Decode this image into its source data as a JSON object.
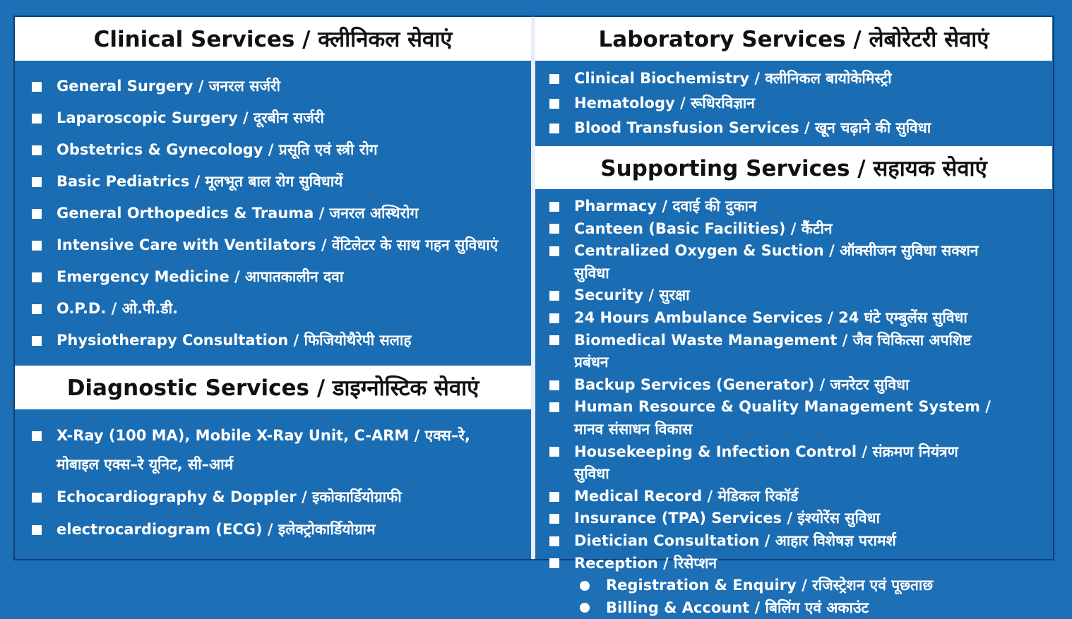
{
  "clinical_services": {
    "title": "Clinical Services / क्लीनिकल सेवाएं",
    "items": [
      "General Surgery / जनरल सर्जरी",
      "Laparoscopic Surgery / दूरबीन सर्जरी",
      "Obstetrics & Gynecology / प्रसूति एवं स्त्री रोग",
      "Basic Pediatrics / मूलभूत बाल रोग सुविधायें",
      "General Orthopedics & Trauma / जनरल अस्थिरोग",
      "Intensive Care with Ventilators / वेंटिलेटर के साथ गहन सुविधाएं",
      "Emergency Medicine / आपातकालीन दवा",
      "O.P.D. / ओ.पी.डी.",
      "Physiotherapy Consultation / फिजियोथैरेपी सलाह"
    ]
  },
  "diagnostic_services": {
    "title": "Diagnostic Services / डाइग्नोस्टिक सेवाएं",
    "items": [
      "X-Ray (100 MA), Mobile X-Ray Unit, C-ARM / एक्स–रे, मोबाइल एक्स–रे यूनिट, सी–आर्म",
      "Echocardiography & Doppler / इकोकार्डियोग्राफी",
      "electrocardiogram (ECG) / इलेक्ट्रोकार्डियोग्राम"
    ]
  },
  "laboratory_services": {
    "title": "Laboratory Services / लेबोरेटरी सेवाएं",
    "items": [
      "Clinical Biochemistry / क्लीनिकल बायोकेमिस्ट्री",
      "Hematology / रूधिरविज्ञान",
      "Blood Transfusion Services / खून चढ़ाने की सुविधा"
    ]
  },
  "supporting_services": {
    "title": "Supporting Services / सहायक सेवाएं",
    "items": [
      "Pharmacy / दवाई की दुकान",
      "Canteen (Basic Facilities) / कैंटीन",
      "Centralized Oxygen & Suction / ऑक्सीजन सुविधा सक्शन सुविधा",
      "Security / सुरक्षा",
      "24 Hours Ambulance Services / 24 घंटे एम्बुलेंस सुविधा",
      "Biomedical Waste Management / जैव चिकित्सा अपशिष्ट प्रबंधन",
      "Backup Services (Generator) / जनरेटर सुविधा",
      "Human Resource & Quality Management System / मानव संसाधन विकास",
      "Housekeeping & Infection Control / संक्रमण नियंत्रण सुविधा",
      "Medical Record / मेडिकल रिकॉर्ड",
      "Insurance (TPA) Services / इंश्योरेंस सुविधा",
      "Dietician Consultation / आहार विशेषज्ञ परामर्श",
      "Reception / रिसेप्शन"
    ],
    "sub_items": [
      "Registration & Enquiry / रजिस्ट्रेशन एवं पूछताछ",
      "Billing & Account / बिलिंग एवं अकाउंट"
    ]
  }
}
